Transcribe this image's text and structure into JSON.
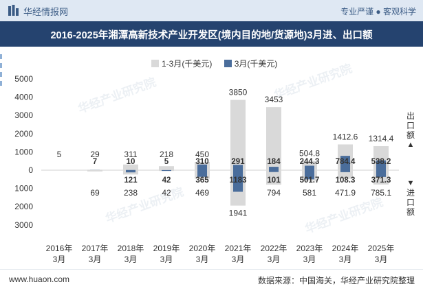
{
  "header": {
    "brand": "华经情报网",
    "slogan": "专业严谨 ● 客观科学",
    "title": "2016-2025年湘潭高新技术产业开发区(境内目的地/货源地)3月进、出口额"
  },
  "colors": {
    "ytd": "#d9d9d9",
    "month": "#4a6d9b",
    "title_bg": "#25436f",
    "top_bg": "#dfe8f3"
  },
  "side_labels": {
    "export_label": "出口额",
    "import_label": "进口额"
  },
  "watermark": "华经产业研究院",
  "footer": {
    "website": "www.huaon.com",
    "source": "数据来源：中国海关，华经产业研究院整理"
  },
  "chart_data": {
    "type": "bar",
    "title": "2016-2025年湘潭高新技术产业开发区(境内目的地/货源地)3月进、出口额",
    "categories": [
      "2016年\n3月",
      "2017年\n3月",
      "2018年\n3月",
      "2019年\n3月",
      "2020年\n3月",
      "2021年\n3月",
      "2022年\n3月",
      "2023年\n3月",
      "2024年\n3月",
      "2025年\n3月"
    ],
    "ylim": [
      -3000,
      5000
    ],
    "yticks": [
      -3000,
      -2000,
      -1000,
      0,
      1000,
      2000,
      3000,
      4000,
      5000
    ],
    "ytick_labels": [
      "3000",
      "2000",
      "1000",
      "0",
      "1000",
      "2000",
      "3000",
      "4000",
      "5000"
    ],
    "legend": [
      "1-3月(千美元)",
      "3月(千美元)"
    ],
    "series": [
      {
        "name": "1-3月(千美元)",
        "kind": "export",
        "values": [
          5,
          29,
          311,
          218,
          450,
          3850,
          3453,
          504.8,
          1412.6,
          1314.4
        ],
        "labels": [
          "5",
          "29",
          "311",
          "218",
          "450",
          "3850",
          "3453",
          "504.8",
          "1412.6",
          "1314.4"
        ]
      },
      {
        "name": "3月(千美元)",
        "kind": "export",
        "values": [
          0,
          7,
          10,
          5,
          310,
          291,
          184,
          244.3,
          784.4,
          538.2
        ],
        "labels": [
          "",
          "7",
          "10",
          "5",
          "310",
          "291",
          "184",
          "244.3",
          "784.4",
          "538.2"
        ]
      },
      {
        "name": "1-3月(千美元)",
        "kind": "import",
        "values": [
          0,
          69,
          238,
          42,
          469,
          1941,
          794,
          581,
          471.9,
          785.1
        ],
        "labels": [
          "",
          "69",
          "238",
          "42",
          "469",
          "1941",
          "794",
          "581",
          "471.9",
          "785.1"
        ]
      },
      {
        "name": "3月(千美元)",
        "kind": "import",
        "values": [
          0,
          0,
          121,
          42,
          365,
          1183,
          101,
          501.7,
          108.3,
          371.3
        ],
        "labels": [
          "",
          "",
          "121",
          "42",
          "365",
          "1183",
          "101",
          "501.7",
          "108.3",
          "371.3"
        ]
      }
    ]
  }
}
